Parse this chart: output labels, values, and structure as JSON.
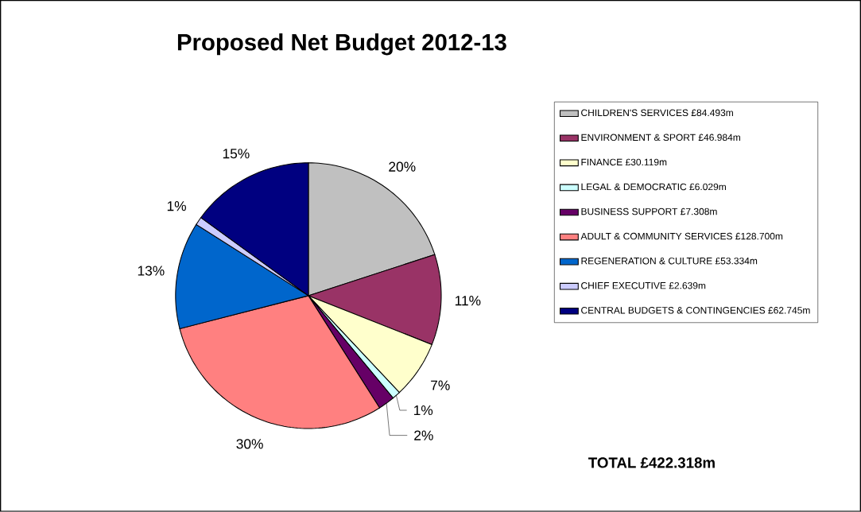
{
  "chart_data": {
    "type": "pie",
    "title": "Proposed Net Budget 2012-13",
    "categories": [
      "CHILDREN'S SERVICES £84.493m",
      "ENVIRONMENT & SPORT £46.984m",
      "FINANCE £30.119m",
      "LEGAL & DEMOCRATIC £6.029m",
      "BUSINESS SUPPORT £7.308m",
      "ADULT & COMMUNITY SERVICES £128.700m",
      "REGENERATION & CULTURE £53.334m",
      "CHIEF EXECUTIVE £2.639m",
      "CENTRAL BUDGETS & CONTINGENCIES £62.745m"
    ],
    "values": [
      20,
      11,
      7,
      1,
      2,
      30,
      13,
      1,
      15
    ],
    "value_labels": [
      "20%",
      "11%",
      "7%",
      "1%",
      "2%",
      "30%",
      "13%",
      "1%",
      "15%"
    ],
    "colors": [
      "#c0c0c0",
      "#993366",
      "#ffffcc",
      "#ccffff",
      "#660066",
      "#ff8080",
      "#0066cc",
      "#ccccff",
      "#000080"
    ],
    "legend": "right",
    "annotations": [
      "TOTAL  £422.318m"
    ]
  }
}
